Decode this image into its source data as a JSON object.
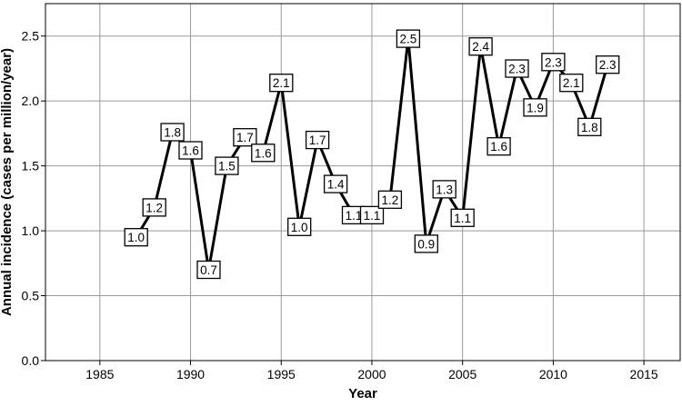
{
  "chart_data": {
    "type": "line",
    "title": "",
    "xlabel": "Year",
    "ylabel": "Annual incidence (cases per million/year)",
    "xlim": [
      1982,
      2017
    ],
    "ylim": [
      0,
      2.75
    ],
    "xticks": [
      1985,
      1990,
      1995,
      2000,
      2005,
      2010,
      2015
    ],
    "yticks": [
      0.0,
      0.5,
      1.0,
      1.5,
      2.0,
      2.5
    ],
    "grid": true,
    "legend": "none",
    "line_color": "#000000",
    "series": [
      {
        "x": [
          1987,
          1988,
          1989,
          1990,
          1991,
          1992,
          1993,
          1994,
          1995,
          1996,
          1997,
          1998,
          1999,
          2000,
          2001,
          2002,
          2003,
          2004,
          2005,
          2006,
          2007,
          2008,
          2009,
          2010,
          2011,
          2012,
          2013
        ],
        "y": [
          0.95,
          1.18,
          1.76,
          1.62,
          0.7,
          1.5,
          1.72,
          1.6,
          2.14,
          1.03,
          1.7,
          1.36,
          1.12,
          1.12,
          1.24,
          2.48,
          0.9,
          1.32,
          1.1,
          2.42,
          1.65,
          2.25,
          1.95,
          2.3,
          2.14,
          1.8,
          2.28
        ],
        "labels": [
          "1.0",
          "1.2",
          "1.8",
          "1.6",
          "0.7",
          "1.5",
          "1.7",
          "1.6",
          "2.1",
          "1.0",
          "1.7",
          "1.4",
          "1.1",
          "1.1",
          "1.2",
          "2.5",
          "0.9",
          "1.3",
          "1.1",
          "2.4",
          "1.6",
          "2.3",
          "1.9",
          "2.3",
          "2.1",
          "1.8",
          "2.3"
        ]
      }
    ]
  }
}
